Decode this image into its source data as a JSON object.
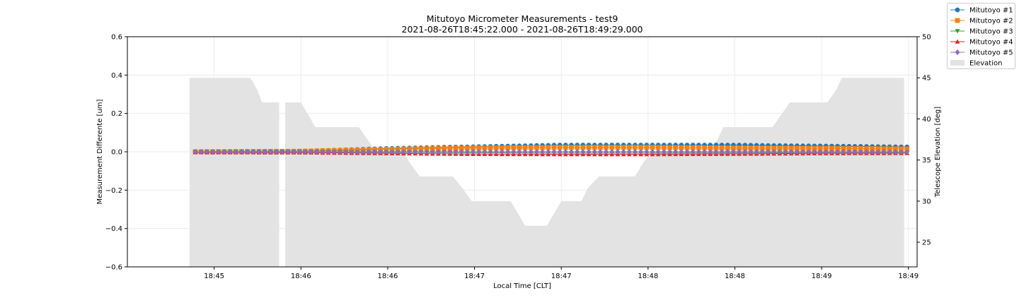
{
  "chart_data": {
    "type": "line",
    "title": "Mitutoyo Micrometer Measurements - test9",
    "subtitle": "2021-08-26T18:45:22.000 - 2021-08-26T18:49:29.000",
    "xlabel": "Local Time [CLT]",
    "ylabel": "Measurement Differente [um]",
    "y2label": "Telescope Elevation [deg]",
    "xlim_seconds": [
      -60,
      486
    ],
    "x_tick_labels": [
      "18:45",
      "18:46",
      "18:46",
      "18:47",
      "18:47",
      "18:48",
      "18:48",
      "18:49",
      "18:49"
    ],
    "x_tick_seconds": [
      0,
      60,
      120,
      180,
      240,
      300,
      360,
      420,
      480
    ],
    "ylim": [
      -0.6,
      0.6
    ],
    "y_ticks": [
      -0.6,
      -0.4,
      -0.2,
      0.0,
      0.2,
      0.4,
      0.6
    ],
    "y_tick_labels": [
      "−0.6",
      "−0.4",
      "−0.2",
      "0.0",
      "0.2",
      "0.4",
      "0.6"
    ],
    "y2lim": [
      22,
      50
    ],
    "y2_ticks": [
      25,
      30,
      35,
      40,
      45,
      50
    ],
    "y2_tick_labels": [
      "25",
      "30",
      "35",
      "40",
      "45",
      "50"
    ],
    "grid": true,
    "legend_position": "top-right outside",
    "series": [
      {
        "name": "Mitutoyo #1",
        "marker": "circle",
        "color": "#1f77b4",
        "x": [
          -13,
          60,
          120,
          150,
          180,
          240,
          300,
          360,
          390,
          420,
          480,
          481
        ],
        "y": [
          0.0,
          0.003,
          0.017,
          0.022,
          0.026,
          0.035,
          0.035,
          0.035,
          0.032,
          0.03,
          0.025,
          0.025
        ]
      },
      {
        "name": "Mitutoyo #2",
        "marker": "square",
        "color": "#ff7f0e",
        "x": [
          -13,
          60,
          120,
          180,
          240,
          300,
          360,
          420,
          481
        ],
        "y": [
          0.0,
          0.003,
          0.013,
          0.02,
          0.023,
          0.023,
          0.02,
          0.018,
          0.015
        ]
      },
      {
        "name": "Mitutoyo #3",
        "marker": "triangle-down",
        "color": "#2ca02c",
        "x": [
          -13,
          60,
          120,
          180,
          240,
          300,
          360,
          420,
          481
        ],
        "y": [
          0.0,
          0.0,
          -0.003,
          -0.005,
          -0.007,
          -0.007,
          -0.006,
          -0.005,
          -0.005
        ]
      },
      {
        "name": "Mitutoyo #4",
        "marker": "triangle-up",
        "color": "#d62728",
        "x": [
          -13,
          60,
          120,
          180,
          240,
          300,
          360,
          420,
          481
        ],
        "y": [
          -0.003,
          -0.004,
          -0.008,
          -0.012,
          -0.013,
          -0.013,
          -0.011,
          -0.008,
          -0.007
        ]
      },
      {
        "name": "Mitutoyo #5",
        "marker": "diamond",
        "color": "#9467bd",
        "x": [
          -13,
          60,
          120,
          180,
          240,
          300,
          360,
          420,
          481
        ],
        "y": [
          0.0,
          0.0,
          0.0,
          0.0,
          0.0,
          0.0,
          0.0,
          0.0,
          0.0
        ]
      }
    ],
    "elevation": {
      "name": "Elevation",
      "color": "#e3e3e3",
      "x": [
        -17,
        25,
        30,
        33,
        45,
        45.1,
        49,
        49.1,
        60,
        65,
        70,
        100,
        106,
        112,
        130,
        136,
        142,
        165,
        172,
        178,
        205,
        210,
        215,
        230,
        235,
        240,
        254,
        258,
        266,
        291,
        296,
        302,
        342,
        348,
        352,
        386,
        392,
        398,
        424,
        430,
        434,
        462,
        468,
        472,
        477
      ],
      "y": [
        45,
        45,
        43.5,
        42,
        42,
        null,
        null,
        42,
        42,
        40.5,
        39,
        39,
        37.5,
        36,
        36,
        34.5,
        33,
        33,
        31.5,
        30,
        30,
        28.5,
        27,
        27,
        28.5,
        30,
        30,
        31.5,
        33,
        33,
        34.5,
        36,
        36,
        37.5,
        39,
        39,
        40.5,
        42,
        42,
        43.5,
        45,
        45,
        45,
        45,
        45
      ]
    }
  }
}
